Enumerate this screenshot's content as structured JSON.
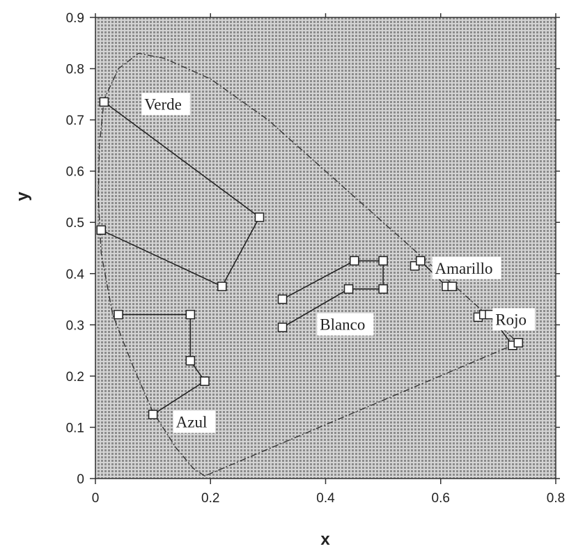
{
  "chart_data": {
    "type": "scatter",
    "title": "",
    "xlabel": "x",
    "ylabel": "y",
    "xlim": [
      0,
      0.8
    ],
    "ylim": [
      0,
      0.9
    ],
    "x_ticks": [
      "0",
      "0.2",
      "0.4",
      "0.6",
      "0.8"
    ],
    "y_ticks": [
      "0",
      "0.1",
      "0.2",
      "0.3",
      "0.4",
      "0.5",
      "0.6",
      "0.7",
      "0.8",
      "0.9"
    ],
    "background": "dotted-grey",
    "gamut_locus": {
      "style": "dash-dot",
      "points": [
        [
          0.19,
          0.005
        ],
        [
          0.17,
          0.02
        ],
        [
          0.14,
          0.06
        ],
        [
          0.1,
          0.13
        ],
        [
          0.065,
          0.22
        ],
        [
          0.03,
          0.32
        ],
        [
          0.01,
          0.44
        ],
        [
          0.005,
          0.55
        ],
        [
          0.007,
          0.65
        ],
        [
          0.015,
          0.74
        ],
        [
          0.04,
          0.8
        ],
        [
          0.075,
          0.83
        ],
        [
          0.12,
          0.82
        ],
        [
          0.2,
          0.78
        ],
        [
          0.3,
          0.7
        ],
        [
          0.4,
          0.6
        ],
        [
          0.5,
          0.5
        ],
        [
          0.6,
          0.4
        ],
        [
          0.735,
          0.265
        ],
        [
          0.19,
          0.005
        ]
      ]
    },
    "series": [
      {
        "name": "Verde",
        "label_pos": [
          0.085,
          0.72
        ],
        "points": [
          [
            0.015,
            0.735
          ],
          [
            0.285,
            0.51
          ],
          [
            0.22,
            0.375
          ],
          [
            0.01,
            0.485
          ]
        ],
        "closed": false
      },
      {
        "name": "Azul",
        "label_pos": [
          0.14,
          0.1
        ],
        "points": [
          [
            0.04,
            0.32
          ],
          [
            0.165,
            0.32
          ],
          [
            0.165,
            0.23
          ],
          [
            0.19,
            0.19
          ],
          [
            0.1,
            0.125
          ]
        ],
        "closed": false
      },
      {
        "name": "Blanco",
        "label_pos": [
          0.39,
          0.29
        ],
        "points": [
          [
            0.325,
            0.35
          ],
          [
            0.45,
            0.425
          ],
          [
            0.5,
            0.425
          ],
          [
            0.5,
            0.37
          ],
          [
            0.44,
            0.37
          ],
          [
            0.325,
            0.295
          ]
        ],
        "closed": false
      },
      {
        "name": "Amarillo",
        "label_pos": [
          0.59,
          0.4
        ],
        "points": [
          [
            0.555,
            0.415
          ],
          [
            0.565,
            0.425
          ],
          [
            0.61,
            0.375
          ],
          [
            0.62,
            0.375
          ]
        ],
        "closed": false
      },
      {
        "name": "Rojo",
        "label_pos": [
          0.695,
          0.3
        ],
        "points": [
          [
            0.665,
            0.315
          ],
          [
            0.675,
            0.32
          ],
          [
            0.685,
            0.32
          ],
          [
            0.725,
            0.26
          ],
          [
            0.735,
            0.265
          ]
        ],
        "closed": false
      }
    ]
  }
}
